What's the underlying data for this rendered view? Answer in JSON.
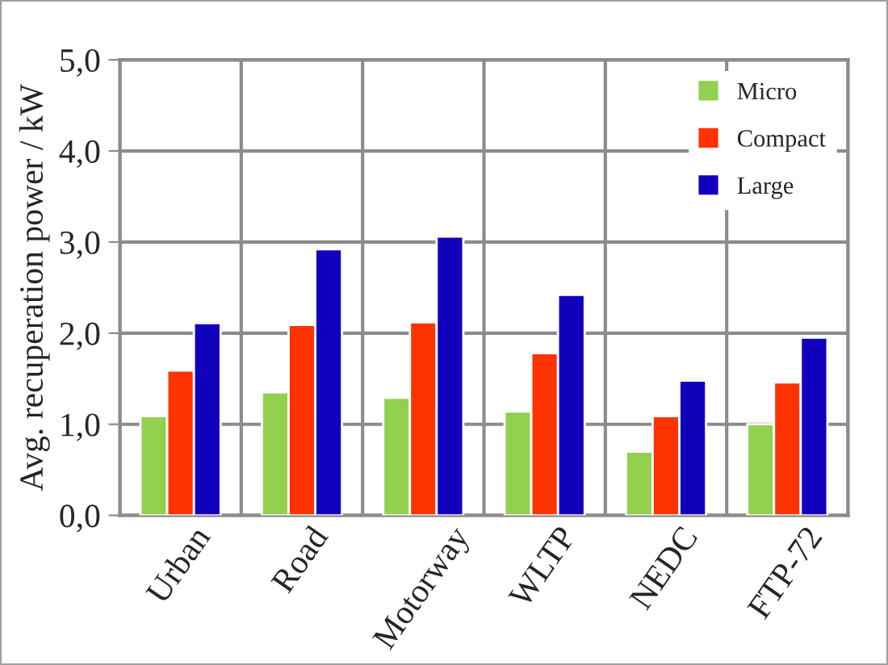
{
  "chart_data": {
    "type": "bar",
    "ylabel": "Avg. recuperation power / kW",
    "categories": [
      "Urban",
      "Road",
      "Motorway",
      "WLTP",
      "NEDC",
      "FTP-72"
    ],
    "series": [
      {
        "name": "Micro",
        "color": "#92d050",
        "values": [
          1.09,
          1.35,
          1.29,
          1.14,
          0.7,
          1.0
        ]
      },
      {
        "name": "Compact",
        "color": "#ff3300",
        "values": [
          1.59,
          2.09,
          2.12,
          1.78,
          1.09,
          1.46
        ]
      },
      {
        "name": "Large",
        "color": "#1100bb",
        "values": [
          2.11,
          2.92,
          3.06,
          2.42,
          1.48,
          1.95
        ]
      }
    ],
    "ylim": [
      0,
      5
    ],
    "yticks": [
      {
        "value": 0,
        "label": "0,0"
      },
      {
        "value": 1,
        "label": "1,0"
      },
      {
        "value": 2,
        "label": "2,0"
      },
      {
        "value": 3,
        "label": "3,0"
      },
      {
        "value": 4,
        "label": "4,0"
      },
      {
        "value": 5,
        "label": "5,0"
      }
    ],
    "grid": true,
    "legend": "top right"
  }
}
